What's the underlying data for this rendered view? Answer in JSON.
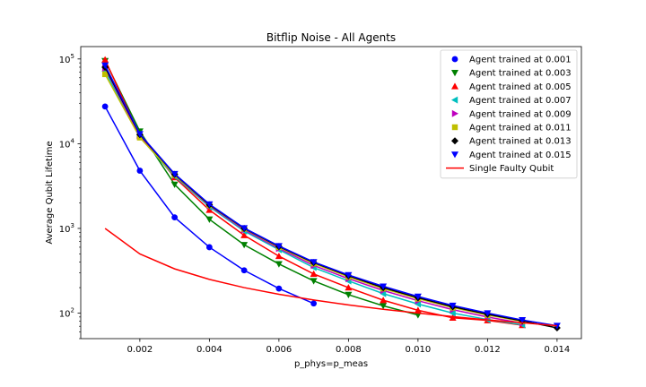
{
  "chart_data": {
    "type": "line",
    "title": "Bitflip Noise - All Agents",
    "xlabel": "p_phys=p_meas",
    "ylabel": "Average Qubit Lifetime",
    "xlim": [
      0.0003,
      0.0147
    ],
    "ylim": [
      50,
      140000
    ],
    "yscale": "log",
    "x_ticks": [
      0.002,
      0.004,
      0.006,
      0.008,
      0.01,
      0.012,
      0.014
    ],
    "x_tick_labels": [
      "0.002",
      "0.004",
      "0.006",
      "0.008",
      "0.010",
      "0.012",
      "0.014"
    ],
    "y_ticks": [
      100,
      1000,
      10000,
      100000
    ],
    "y_tick_labels": [
      "10^2",
      "10^3",
      "10^4",
      "10^5"
    ],
    "grid": false,
    "legend_position": "top-right",
    "series": [
      {
        "name": "Agent trained at 0.001",
        "color": "#0000ff",
        "marker": "circle",
        "x": [
          0.001,
          0.002,
          0.003,
          0.004,
          0.005,
          0.006,
          0.007
        ],
        "y": [
          27500,
          4800,
          1350,
          600,
          320,
          195,
          130
        ]
      },
      {
        "name": "Agent trained at 0.003",
        "color": "#008000",
        "marker": "triangle-down",
        "x": [
          0.001,
          0.002,
          0.003,
          0.004,
          0.005,
          0.006,
          0.007,
          0.008,
          0.009,
          0.01
        ],
        "y": [
          95000,
          14000,
          3300,
          1280,
          640,
          380,
          240,
          165,
          122,
          95
        ]
      },
      {
        "name": "Agent trained at 0.005",
        "color": "#ff0000",
        "marker": "triangle-up",
        "x": [
          0.001,
          0.002,
          0.003,
          0.004,
          0.005,
          0.006,
          0.007,
          0.008,
          0.009,
          0.01,
          0.011,
          0.012,
          0.013
        ],
        "y": [
          98000,
          12500,
          4000,
          1650,
          830,
          470,
          290,
          200,
          142,
          108,
          88,
          82,
          72
        ]
      },
      {
        "name": "Agent trained at 0.007",
        "color": "#00bfbf",
        "marker": "triangle-left",
        "x": [
          0.001,
          0.002,
          0.003,
          0.004,
          0.005,
          0.006,
          0.007,
          0.008,
          0.009,
          0.01,
          0.011,
          0.012,
          0.013
        ],
        "y": [
          72000,
          12000,
          4100,
          1800,
          930,
          560,
          345,
          240,
          170,
          128,
          100,
          84,
          73
        ]
      },
      {
        "name": "Agent trained at 0.009",
        "color": "#bf00bf",
        "marker": "triangle-right",
        "x": [
          0.001,
          0.002,
          0.003,
          0.004,
          0.005,
          0.006,
          0.007,
          0.008,
          0.009,
          0.01,
          0.011,
          0.012,
          0.013
        ],
        "y": [
          78000,
          12200,
          4200,
          1850,
          960,
          580,
          365,
          255,
          185,
          140,
          110,
          90,
          76
        ]
      },
      {
        "name": "Agent trained at 0.011",
        "color": "#bfbf00",
        "marker": "square",
        "x": [
          0.001,
          0.002,
          0.003,
          0.004,
          0.005,
          0.006,
          0.007,
          0.008,
          0.009,
          0.01,
          0.011,
          0.012,
          0.013
        ],
        "y": [
          66000,
          11800,
          4250,
          1880,
          990,
          600,
          385,
          268,
          195,
          148,
          116,
          95,
          80
        ]
      },
      {
        "name": "Agent trained at 0.013",
        "color": "#000000",
        "marker": "diamond",
        "x": [
          0.001,
          0.002,
          0.003,
          0.004,
          0.005,
          0.006,
          0.007,
          0.008,
          0.009,
          0.01,
          0.011,
          0.012,
          0.013,
          0.014
        ],
        "y": [
          80000,
          12800,
          4350,
          1900,
          1000,
          610,
          395,
          276,
          200,
          152,
          119,
          97,
          81,
          67
        ]
      },
      {
        "name": "Agent trained at 0.015",
        "color": "#0000ff",
        "marker": "triangle-down",
        "x": [
          0.001,
          0.002,
          0.003,
          0.004,
          0.005,
          0.006,
          0.007,
          0.008,
          0.009,
          0.01,
          0.011,
          0.012,
          0.013,
          0.014
        ],
        "y": [
          84000,
          13000,
          4400,
          1930,
          1010,
          620,
          402,
          282,
          207,
          157,
          123,
          100,
          83,
          71
        ]
      },
      {
        "name": "Single Faulty Qubit",
        "color": "#ff0000",
        "marker": "none",
        "x": [
          0.001,
          0.002,
          0.003,
          0.004,
          0.005,
          0.006,
          0.007,
          0.008,
          0.009,
          0.01,
          0.011,
          0.012,
          0.013,
          0.014
        ],
        "y": [
          1000,
          500,
          333,
          250,
          200,
          167,
          143,
          125,
          111,
          100,
          91,
          83,
          77,
          71
        ]
      }
    ]
  }
}
